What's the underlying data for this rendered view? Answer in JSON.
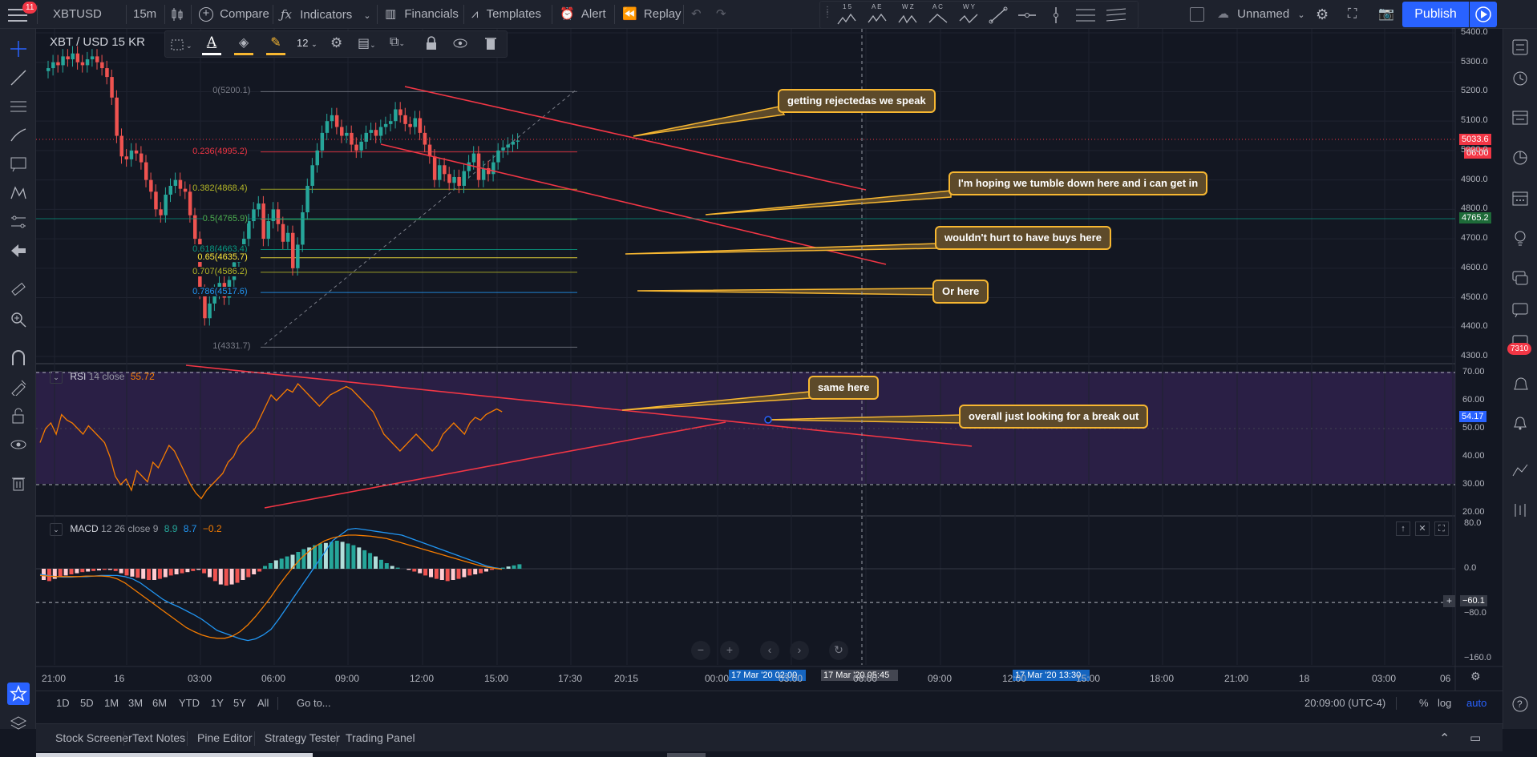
{
  "topbar": {
    "menu_badge": "11",
    "symbol": "XBTUSD",
    "interval": "15m",
    "compare": "Compare",
    "indicators": "Indicators",
    "financials": "Financials",
    "templates": "Templates",
    "alert": "Alert",
    "replay": "Replay",
    "layout_name": "Unnamed",
    "publish": "Publish",
    "drawing_groups": [
      "1 5",
      "A E",
      "W Z",
      "A C",
      "W Y"
    ]
  },
  "drawtoolbar": {
    "font_size": "12"
  },
  "chart": {
    "title": "XBT / USD  15  KR",
    "price_axis": [
      "5400.0",
      "5300.0",
      "5200.0",
      "5100.0",
      "5000.0",
      "4900.0",
      "4800.0",
      "4700.0",
      "4600.0",
      "4500.0",
      "4400.0",
      "4300.0"
    ],
    "price_current": "5033.6",
    "price_countdown": "06:00",
    "price_level": "4765.2",
    "fib_labels": [
      "0(5200.1)",
      "0.236(4995.2)",
      "0.382(4868.4)",
      "0.5(4765.9)",
      "0.618(4663.4)",
      "0.65(4635.7)",
      "0.707(4586.2)",
      "0.786(4517.6)",
      "1(4331.7)"
    ],
    "fib_colors": [
      "#787b86",
      "#f23645",
      "#b2b527",
      "#4caf50",
      "#089981",
      "#ffeb3b",
      "#b2b527",
      "#2196f3",
      "#787b86"
    ],
    "callouts": [
      "getting rejectedas we speak",
      "I'm hoping we tumble down here and i can get in",
      "wouldn't hurt to have buys here",
      "Or here",
      "same here",
      "overall just looking for a break out"
    ]
  },
  "rsi": {
    "name": "RSI",
    "params": "14 close",
    "value": "55.72",
    "axis": [
      "70.00",
      "60.00",
      "50.00",
      "40.00",
      "30.00",
      "20.00"
    ],
    "current": "54.17"
  },
  "macd": {
    "name": "MACD",
    "params": "12 26 close 9",
    "v1": "8.9",
    "v2": "8.7",
    "v3": "−0.2",
    "axis": [
      "80.0",
      "0.0",
      "−80.0",
      "−160.0"
    ],
    "current": "−60.1"
  },
  "time_axis": [
    "21:00",
    "16",
    "03:00",
    "06:00",
    "09:00",
    "12:00",
    "15:00",
    "17:30",
    "20:15",
    "00:00",
    "03:00",
    "06:00",
    "09:00",
    "12:00",
    "15:00",
    "18:00",
    "21:00",
    "18",
    "03:00",
    "06"
  ],
  "time_tags": [
    "17 Mar '20   02:00",
    "17 Mar '20   05:45",
    "17 Mar '20   13:30"
  ],
  "rightbar_badge": "7310",
  "timeframes": [
    "1D",
    "5D",
    "1M",
    "3M",
    "6M",
    "YTD",
    "1Y",
    "5Y",
    "All"
  ],
  "goto": "Go to...",
  "clock": "20:09:00 (UTC-4)",
  "scale_opts": [
    "%",
    "log",
    "auto"
  ],
  "bottom_tabs": [
    "Stock Screener",
    "Text Notes",
    "Pine Editor",
    "Strategy Tester",
    "Trading Panel"
  ],
  "colors": {
    "up": "#26a69a",
    "down": "#ef5350",
    "accent": "#2962ff",
    "callout_border": "#f7b731",
    "trend": "#f23645"
  }
}
